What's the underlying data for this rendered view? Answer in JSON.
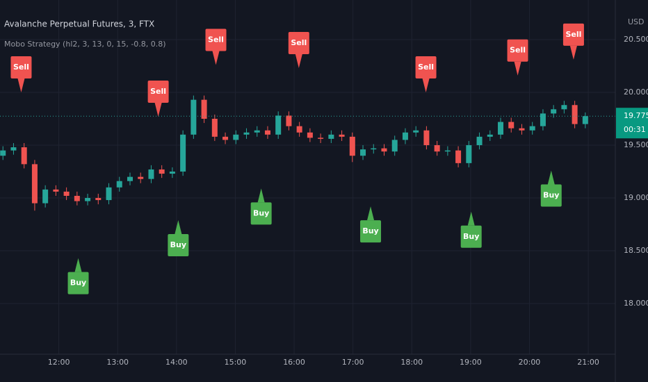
{
  "chart_data": {
    "type": "candlestick",
    "title": "Avalanche Perpetual Futures, 3, FTX",
    "subtitle": "Mobo Strategy (hl2, 3, 13, 0, 15, -0.8, 0.8)",
    "currency": "USD",
    "last_price": 19.775,
    "countdown": "00:31",
    "up_color": "#26a69a",
    "down_color": "#ef5350",
    "grid": true,
    "x": [
      11.05,
      11.23,
      11.41,
      11.59,
      11.77,
      11.95,
      12.13,
      12.31,
      12.49,
      12.67,
      12.85,
      13.03,
      13.21,
      13.39,
      13.57,
      13.75,
      13.93,
      14.11,
      14.29,
      14.47,
      14.65,
      14.83,
      15.01,
      15.19,
      15.37,
      15.55,
      15.73,
      15.91,
      16.09,
      16.27,
      16.45,
      16.63,
      16.81,
      16.99,
      17.17,
      17.35,
      17.53,
      17.71,
      17.89,
      18.07,
      18.25,
      18.43,
      18.61,
      18.79,
      18.97,
      19.15,
      19.33,
      19.51,
      19.69,
      19.87,
      20.05,
      20.23,
      20.41,
      20.59,
      20.77,
      20.95
    ],
    "open": [
      19.4,
      19.45,
      19.48,
      19.32,
      18.95,
      19.08,
      19.06,
      19.02,
      18.97,
      19.0,
      18.98,
      19.1,
      19.16,
      19.2,
      19.18,
      19.27,
      19.23,
      19.25,
      19.6,
      19.93,
      19.75,
      19.58,
      19.55,
      19.6,
      19.62,
      19.64,
      19.6,
      19.78,
      19.68,
      19.62,
      19.57,
      19.56,
      19.6,
      19.58,
      19.4,
      19.46,
      19.47,
      19.44,
      19.55,
      19.62,
      19.64,
      19.5,
      19.44,
      19.45,
      19.33,
      19.5,
      19.58,
      19.6,
      19.72,
      19.66,
      19.64,
      19.68,
      19.8,
      19.84,
      19.88,
      19.7
    ],
    "high": [
      19.49,
      19.52,
      19.52,
      19.36,
      19.12,
      19.12,
      19.1,
      19.06,
      19.04,
      19.04,
      19.14,
      19.2,
      19.24,
      19.24,
      19.31,
      19.31,
      19.29,
      19.64,
      19.97,
      19.97,
      19.79,
      19.62,
      19.64,
      19.66,
      19.68,
      19.68,
      19.82,
      19.82,
      19.72,
      19.66,
      19.61,
      19.64,
      19.64,
      19.62,
      19.5,
      19.51,
      19.51,
      19.59,
      19.66,
      19.68,
      19.68,
      19.54,
      19.49,
      19.49,
      19.54,
      19.62,
      19.64,
      19.76,
      19.76,
      19.7,
      19.72,
      19.84,
      19.88,
      19.92,
      19.92,
      19.81
    ],
    "low": [
      19.36,
      19.41,
      19.28,
      18.88,
      18.91,
      19.02,
      18.98,
      18.93,
      18.93,
      18.94,
      18.94,
      19.06,
      19.12,
      19.14,
      19.14,
      19.19,
      19.19,
      19.21,
      19.56,
      19.71,
      19.54,
      19.51,
      19.51,
      19.56,
      19.58,
      19.56,
      19.56,
      19.64,
      19.58,
      19.53,
      19.52,
      19.52,
      19.54,
      19.34,
      19.36,
      19.42,
      19.4,
      19.4,
      19.51,
      19.58,
      19.46,
      19.4,
      19.4,
      19.29,
      19.29,
      19.46,
      19.54,
      19.56,
      19.62,
      19.6,
      19.6,
      19.64,
      19.76,
      19.8,
      19.66,
      19.66
    ],
    "close": [
      19.45,
      19.48,
      19.32,
      18.95,
      19.08,
      19.06,
      19.02,
      18.97,
      19.0,
      18.98,
      19.1,
      19.16,
      19.2,
      19.18,
      19.27,
      19.23,
      19.25,
      19.6,
      19.93,
      19.75,
      19.58,
      19.55,
      19.6,
      19.62,
      19.64,
      19.6,
      19.78,
      19.68,
      19.62,
      19.57,
      19.56,
      19.6,
      19.58,
      19.4,
      19.46,
      19.47,
      19.44,
      19.55,
      19.62,
      19.64,
      19.5,
      19.44,
      19.45,
      19.33,
      19.5,
      19.58,
      19.6,
      19.72,
      19.66,
      19.64,
      19.68,
      19.8,
      19.84,
      19.88,
      19.7,
      19.775
    ],
    "signals": [
      {
        "label": "Sell",
        "x": 11.36,
        "y": 20.0
      },
      {
        "label": "Sell",
        "x": 13.69,
        "y": 19.77
      },
      {
        "label": "Sell",
        "x": 14.67,
        "y": 20.26
      },
      {
        "label": "Sell",
        "x": 16.08,
        "y": 20.23
      },
      {
        "label": "Sell",
        "x": 18.24,
        "y": 20.0
      },
      {
        "label": "Sell",
        "x": 19.8,
        "y": 20.16
      },
      {
        "label": "Sell",
        "x": 20.75,
        "y": 20.31
      },
      {
        "label": "Buy",
        "x": 12.33,
        "y": 18.43
      },
      {
        "label": "Buy",
        "x": 14.03,
        "y": 18.79
      },
      {
        "label": "Buy",
        "x": 15.44,
        "y": 19.09
      },
      {
        "label": "Buy",
        "x": 17.3,
        "y": 18.92
      },
      {
        "label": "Buy",
        "x": 19.01,
        "y": 18.87
      },
      {
        "label": "Buy",
        "x": 20.37,
        "y": 19.26
      }
    ],
    "sell_color": "#f05350",
    "buy_color": "#4caf50",
    "xlim": [
      11.0,
      21.46
    ],
    "xticks": [
      {
        "value": 12,
        "label": "12:00"
      },
      {
        "value": 13,
        "label": "13:00"
      },
      {
        "value": 14,
        "label": "14:00"
      },
      {
        "value": 15,
        "label": "15:00"
      },
      {
        "value": 16,
        "label": "16:00"
      },
      {
        "value": 17,
        "label": "17:00"
      },
      {
        "value": 18,
        "label": "18:00"
      },
      {
        "value": 19,
        "label": "19:00"
      },
      {
        "value": 20,
        "label": "20:00"
      },
      {
        "value": 21,
        "label": "21:00"
      }
    ],
    "ylim": [
      17.52,
      20.875
    ],
    "yticks": [
      {
        "value": 18,
        "label": "18.000"
      },
      {
        "value": 18.5,
        "label": "18.500"
      },
      {
        "value": 19,
        "label": "19.000"
      },
      {
        "value": 19.5,
        "label": "19.500"
      },
      {
        "value": 20,
        "label": "20.000"
      },
      {
        "value": 20.5,
        "label": "20.500"
      }
    ]
  }
}
